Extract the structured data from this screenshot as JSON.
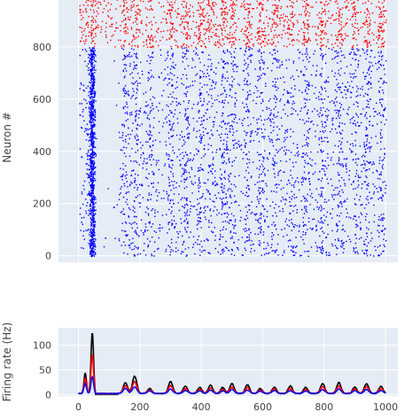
{
  "chart_data": [
    {
      "type": "scatter",
      "title": "",
      "xlabel": "",
      "ylabel": "Neuron #",
      "xlim": [
        -65,
        1040
      ],
      "ylim": [
        -25,
        1000
      ],
      "xticks": [
        0,
        200,
        400,
        600,
        800,
        1000
      ],
      "yticks": [
        0,
        200,
        400,
        600,
        800
      ],
      "ytick_labels": [
        "0",
        "200",
        "400",
        "600",
        "800"
      ],
      "grid": true,
      "series": [
        {
          "color": "#0000ff",
          "neuron_range": [
            0,
            799
          ],
          "spike_count": 4200
        },
        {
          "color": "#ff0000",
          "neuron_range": [
            800,
            999
          ],
          "spike_count": 1400
        }
      ],
      "synchrony_times_ms": [
        43,
        150,
        182,
        232,
        300,
        348,
        395,
        430,
        470,
        500,
        550,
        592,
        638,
        690,
        740,
        795,
        848,
        900,
        938,
        985
      ]
    },
    {
      "type": "line",
      "title": "",
      "xlabel": "",
      "ylabel": "Firing rate (Hz)",
      "xlim": [
        -65,
        1040
      ],
      "ylim": [
        -3,
        135
      ],
      "xticks": [
        0,
        200,
        400,
        600,
        800,
        1000
      ],
      "xtick_labels": [
        "0",
        "200",
        "400",
        "600",
        "800",
        "1000"
      ],
      "yticks": [
        0,
        50,
        100
      ],
      "ytick_labels": [
        "0",
        "50",
        "100"
      ],
      "grid": true,
      "series": [
        {
          "color": "#000000",
          "peaks": [
            [
              22,
              42
            ],
            [
              45,
              125
            ],
            [
              153,
              22
            ],
            [
              183,
              35
            ],
            [
              232,
              10
            ],
            [
              300,
              24
            ],
            [
              348,
              15
            ],
            [
              395,
              12
            ],
            [
              430,
              17
            ],
            [
              470,
              12
            ],
            [
              500,
              20
            ],
            [
              550,
              18
            ],
            [
              592,
              10
            ],
            [
              638,
              13
            ],
            [
              690,
              15
            ],
            [
              740,
              12
            ],
            [
              795,
              20
            ],
            [
              848,
              22
            ],
            [
              900,
              13
            ],
            [
              938,
              20
            ],
            [
              985,
              14
            ]
          ]
        },
        {
          "color": "#ff0000",
          "peaks": [
            [
              22,
              30
            ],
            [
              45,
              80
            ],
            [
              153,
              16
            ],
            [
              183,
              24
            ],
            [
              232,
              7
            ],
            [
              300,
              16
            ],
            [
              348,
              10
            ],
            [
              395,
              8
            ],
            [
              430,
              11
            ],
            [
              470,
              8
            ],
            [
              500,
              13
            ],
            [
              550,
              12
            ],
            [
              592,
              7
            ],
            [
              638,
              9
            ],
            [
              690,
              10
            ],
            [
              740,
              8
            ],
            [
              795,
              14
            ],
            [
              848,
              15
            ],
            [
              900,
              9
            ],
            [
              938,
              14
            ],
            [
              985,
              10
            ]
          ]
        },
        {
          "color": "#0000ff",
          "peaks": [
            [
              22,
              20
            ],
            [
              45,
              35
            ],
            [
              153,
              10
            ],
            [
              183,
              13
            ],
            [
              232,
              5
            ],
            [
              300,
              9
            ],
            [
              348,
              6
            ],
            [
              395,
              5
            ],
            [
              430,
              7
            ],
            [
              470,
              5
            ],
            [
              500,
              8
            ],
            [
              550,
              7
            ],
            [
              592,
              5
            ],
            [
              638,
              6
            ],
            [
              690,
              6
            ],
            [
              740,
              5
            ],
            [
              795,
              8
            ],
            [
              848,
              9
            ],
            [
              900,
              6
            ],
            [
              938,
              8
            ],
            [
              985,
              6
            ]
          ]
        }
      ]
    }
  ]
}
